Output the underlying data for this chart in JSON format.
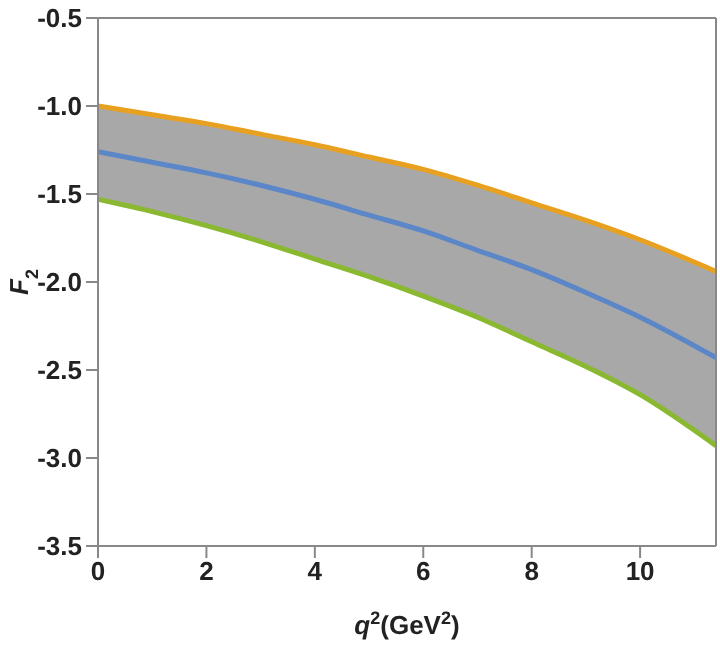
{
  "chart_data": {
    "type": "line",
    "xlabel": "q$^{2}$(GeV$^{2}$)",
    "ylabel": "F$_{2}$",
    "x": [
      0,
      1,
      2,
      3,
      4,
      5,
      6,
      7,
      8,
      9,
      10,
      11.4
    ],
    "series": [
      {
        "color": "#e8a020",
        "values": [
          -1.0,
          -1.05,
          -1.1,
          -1.16,
          -1.22,
          -1.29,
          -1.36,
          -1.45,
          -1.55,
          -1.65,
          -1.76,
          -1.94
        ]
      },
      {
        "color": "#5b86c8",
        "values": [
          -1.26,
          -1.32,
          -1.38,
          -1.45,
          -1.53,
          -1.62,
          -1.71,
          -1.82,
          -1.93,
          -2.06,
          -2.2,
          -2.43
        ],
        "lower": [
          -1.53,
          -1.6,
          -1.68,
          -1.77,
          -1.87,
          -1.97,
          -2.08,
          -2.2,
          -2.34,
          -2.48,
          -2.64,
          -2.93
        ],
        "upper": [
          -1.0,
          -1.05,
          -1.1,
          -1.16,
          -1.22,
          -1.29,
          -1.36,
          -1.45,
          -1.55,
          -1.65,
          -1.76,
          -1.94
        ]
      },
      {
        "color": "#8ab830",
        "values": [
          -1.53,
          -1.6,
          -1.68,
          -1.77,
          -1.87,
          -1.97,
          -2.08,
          -2.2,
          -2.34,
          -2.48,
          -2.64,
          -2.93
        ]
      }
    ],
    "xlim": [
      0,
      11.4
    ],
    "xticks": [
      0,
      2,
      4,
      6,
      8,
      10
    ],
    "ylim": [
      -3.5,
      -0.5
    ],
    "yticks": [
      {
        "value": -3.5,
        "label": "-3.5"
      },
      {
        "value": -3.0,
        "label": "-3.0"
      },
      {
        "value": -2.5,
        "label": "-2.5"
      },
      {
        "value": -2.0,
        "label": "-2.0"
      },
      {
        "value": -1.5,
        "label": "-1.5"
      },
      {
        "value": -1.0,
        "label": "-1.0"
      },
      {
        "value": -0.5,
        "label": "-0.5"
      }
    ],
    "marker": "none",
    "line_style": "solid",
    "grid": false,
    "legend": false
  }
}
